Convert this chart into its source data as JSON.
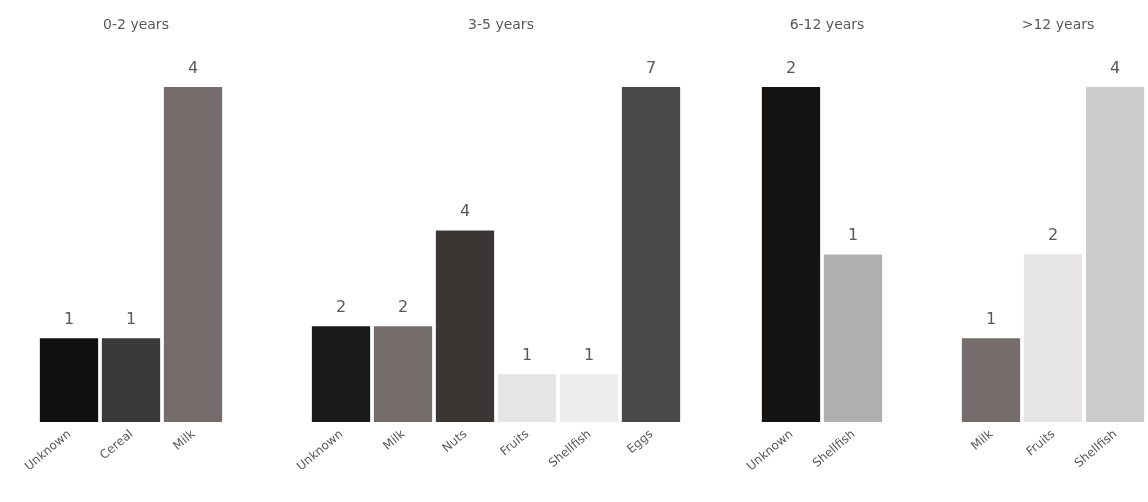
{
  "chart_data": [
    {
      "type": "bar",
      "title": "0-2 years",
      "categories": [
        "Unknown",
        "Cereal",
        "Milk"
      ],
      "values": [
        1,
        1,
        4
      ],
      "colors": [
        "#111111",
        "#3a3a3a",
        "#756d6b"
      ],
      "data_labels": true
    },
    {
      "type": "bar",
      "title": "3-5 years",
      "categories": [
        "Unknown",
        "Milk",
        "Nuts",
        "Fruits",
        "Shellfish",
        "Eggs"
      ],
      "values": [
        2,
        2,
        4,
        1,
        1,
        7
      ],
      "colors": [
        "#1a1a1a",
        "#756d6b",
        "#3b3533",
        "#e6e4e4",
        "#eeeeee",
        "#4a4a4a"
      ],
      "data_labels": true
    },
    {
      "type": "bar",
      "title": "6-12 years",
      "categories": [
        "Unknown",
        "Shellfish"
      ],
      "values": [
        2,
        1
      ],
      "colors": [
        "#161313",
        "#b0b0b0"
      ],
      "data_labels": true
    },
    {
      "type": "bar",
      "title": ">12 years",
      "categories": [
        "Milk",
        "Fruits",
        "Shellfish"
      ],
      "values": [
        1,
        2,
        4
      ],
      "colors": [
        "#756d6b",
        "#e6e4e4",
        "#cccccc"
      ],
      "data_labels": true
    }
  ]
}
